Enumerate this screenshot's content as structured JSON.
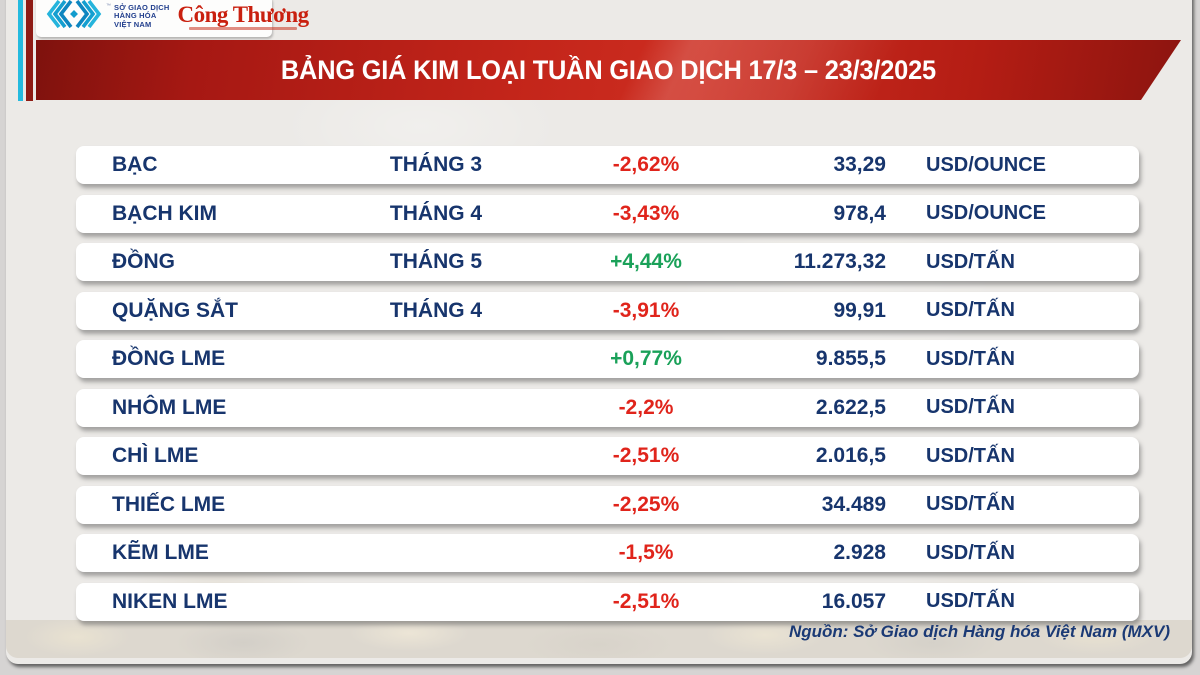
{
  "header": {
    "mxv_lines": [
      "SỞ GIAO DỊCH",
      "HÀNG HÓA",
      "VIỆT NAM"
    ],
    "trademark": "™",
    "congthuong_name": "Công Thương"
  },
  "banner": {
    "title": "BẢNG GIÁ KIM LOẠI TUẦN GIAO DỊCH 17/3 – 23/3/2025"
  },
  "table": {
    "rows": [
      {
        "name": "BẠC",
        "month": "THÁNG 3",
        "change": "-2,62%",
        "direction": "down",
        "price": "33,29",
        "unit": "USD/OUNCE"
      },
      {
        "name": "BẠCH KIM",
        "month": "THÁNG 4",
        "change": "-3,43%",
        "direction": "down",
        "price": "978,4",
        "unit": "USD/OUNCE"
      },
      {
        "name": "ĐỒNG",
        "month": "THÁNG 5",
        "change": "+4,44%",
        "direction": "up",
        "price": "11.273,32",
        "unit": "USD/TẤN"
      },
      {
        "name": "QUẶNG SẮT",
        "month": "THÁNG 4",
        "change": "-3,91%",
        "direction": "down",
        "price": "99,91",
        "unit": "USD/TẤN"
      },
      {
        "name": "ĐỒNG LME",
        "month": "",
        "change": "+0,77%",
        "direction": "up",
        "price": "9.855,5",
        "unit": "USD/TẤN"
      },
      {
        "name": "NHÔM LME",
        "month": "",
        "change": "-2,2%",
        "direction": "down",
        "price": "2.622,5",
        "unit": "USD/TẤN"
      },
      {
        "name": "CHÌ LME",
        "month": "",
        "change": "-2,51%",
        "direction": "down",
        "price": "2.016,5",
        "unit": "USD/TẤN"
      },
      {
        "name": "THIẾC LME",
        "month": "",
        "change": "-2,25%",
        "direction": "down",
        "price": "34.489",
        "unit": "USD/TẤN"
      },
      {
        "name": "KẼM LME",
        "month": "",
        "change": "-1,5%",
        "direction": "down",
        "price": "2.928",
        "unit": "USD/TẤN"
      },
      {
        "name": "NIKEN LME",
        "month": "",
        "change": "-2,51%",
        "direction": "down",
        "price": "16.057",
        "unit": "USD/TẤN"
      }
    ]
  },
  "footer": {
    "source": "Nguồn: Sở Giao dịch Hàng hóa Việt Nam (MXV)"
  },
  "colors": {
    "banner_red": "#c3251a",
    "navy_text": "#17356d",
    "down_red": "#e0241b",
    "up_green": "#1aa159",
    "accent_cyan": "#25bade",
    "accent_darkred": "#8e1b14",
    "congthuong_red": "#c9200f"
  },
  "chart_data": {
    "type": "table",
    "title": "BẢNG GIÁ KIM LOẠI TUẦN GIAO DỊCH 17/3 – 23/3/2025",
    "source": "Nguồn: Sở Giao dịch Hàng hóa Việt Nam (MXV)",
    "number_format": "vi-VN",
    "rows": [
      {
        "name": "BẠC",
        "month": "THÁNG 3",
        "change_pct": -2.62,
        "price": 33.29,
        "unit": "USD/OUNCE"
      },
      {
        "name": "BẠCH KIM",
        "month": "THÁNG 4",
        "change_pct": -3.43,
        "price": 978.4,
        "unit": "USD/OUNCE"
      },
      {
        "name": "ĐỒNG",
        "month": "THÁNG 5",
        "change_pct": 4.44,
        "price": 11273.32,
        "unit": "USD/TẤN"
      },
      {
        "name": "QUẶNG SẮT",
        "month": "THÁNG 4",
        "change_pct": -3.91,
        "price": 99.91,
        "unit": "USD/TẤN"
      },
      {
        "name": "ĐỒNG LME",
        "month": null,
        "change_pct": 0.77,
        "price": 9855.5,
        "unit": "USD/TẤN"
      },
      {
        "name": "NHÔM LME",
        "month": null,
        "change_pct": -2.2,
        "price": 2622.5,
        "unit": "USD/TẤN"
      },
      {
        "name": "CHÌ LME",
        "month": null,
        "change_pct": -2.51,
        "price": 2016.5,
        "unit": "USD/TẤN"
      },
      {
        "name": "THIẾC LME",
        "month": null,
        "change_pct": -2.25,
        "price": 34489,
        "unit": "USD/TẤN"
      },
      {
        "name": "KẼM LME",
        "month": null,
        "change_pct": -1.5,
        "price": 2928,
        "unit": "USD/TẤN"
      },
      {
        "name": "NIKEN LME",
        "month": null,
        "change_pct": -2.51,
        "price": 16057,
        "unit": "USD/TẤN"
      }
    ]
  }
}
